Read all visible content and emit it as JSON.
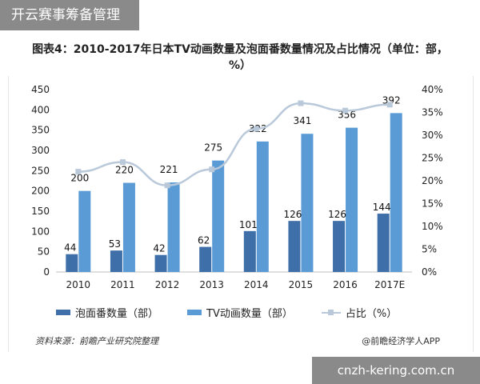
{
  "corner_tag": "开云赛事筹备管理",
  "chart_data": {
    "type": "bar",
    "title": "图表4：2010-2017年日本TV动画数量及泡面番数量情况及占比情况（单位：部，%）",
    "categories": [
      "2010",
      "2011",
      "2012",
      "2013",
      "2014",
      "2015",
      "2016",
      "2017E"
    ],
    "series": [
      {
        "name": "泡面番数量（部）",
        "type": "bar",
        "values": [
          44,
          53,
          42,
          62,
          101,
          126,
          126,
          144
        ],
        "color": "#3f6fa8"
      },
      {
        "name": "TV动画数量（部）",
        "type": "bar",
        "values": [
          200,
          220,
          221,
          275,
          322,
          341,
          356,
          392
        ],
        "color": "#5b9bd5"
      },
      {
        "name": "占比（%）",
        "type": "line",
        "axis": "right",
        "values": [
          22.0,
          24.1,
          19.0,
          22.5,
          31.4,
          37.0,
          35.4,
          36.7
        ],
        "color": "#b9c9da"
      }
    ],
    "y_left": {
      "min": 0,
      "max": 450,
      "ticks": [
        0,
        50,
        100,
        150,
        200,
        250,
        300,
        350,
        400,
        450
      ]
    },
    "y_right": {
      "min": 0,
      "max": 40,
      "ticks": [
        "0%",
        "5%",
        "10%",
        "15%",
        "20%",
        "25%",
        "30%",
        "35%",
        "40%"
      ]
    },
    "legend_position": "bottom",
    "grid": false
  },
  "source_note": "资料来源：前瞻产业研究院整理",
  "app_credit": "@前瞻经济学人APP",
  "site_url": "cnzh-kering.com.cn"
}
